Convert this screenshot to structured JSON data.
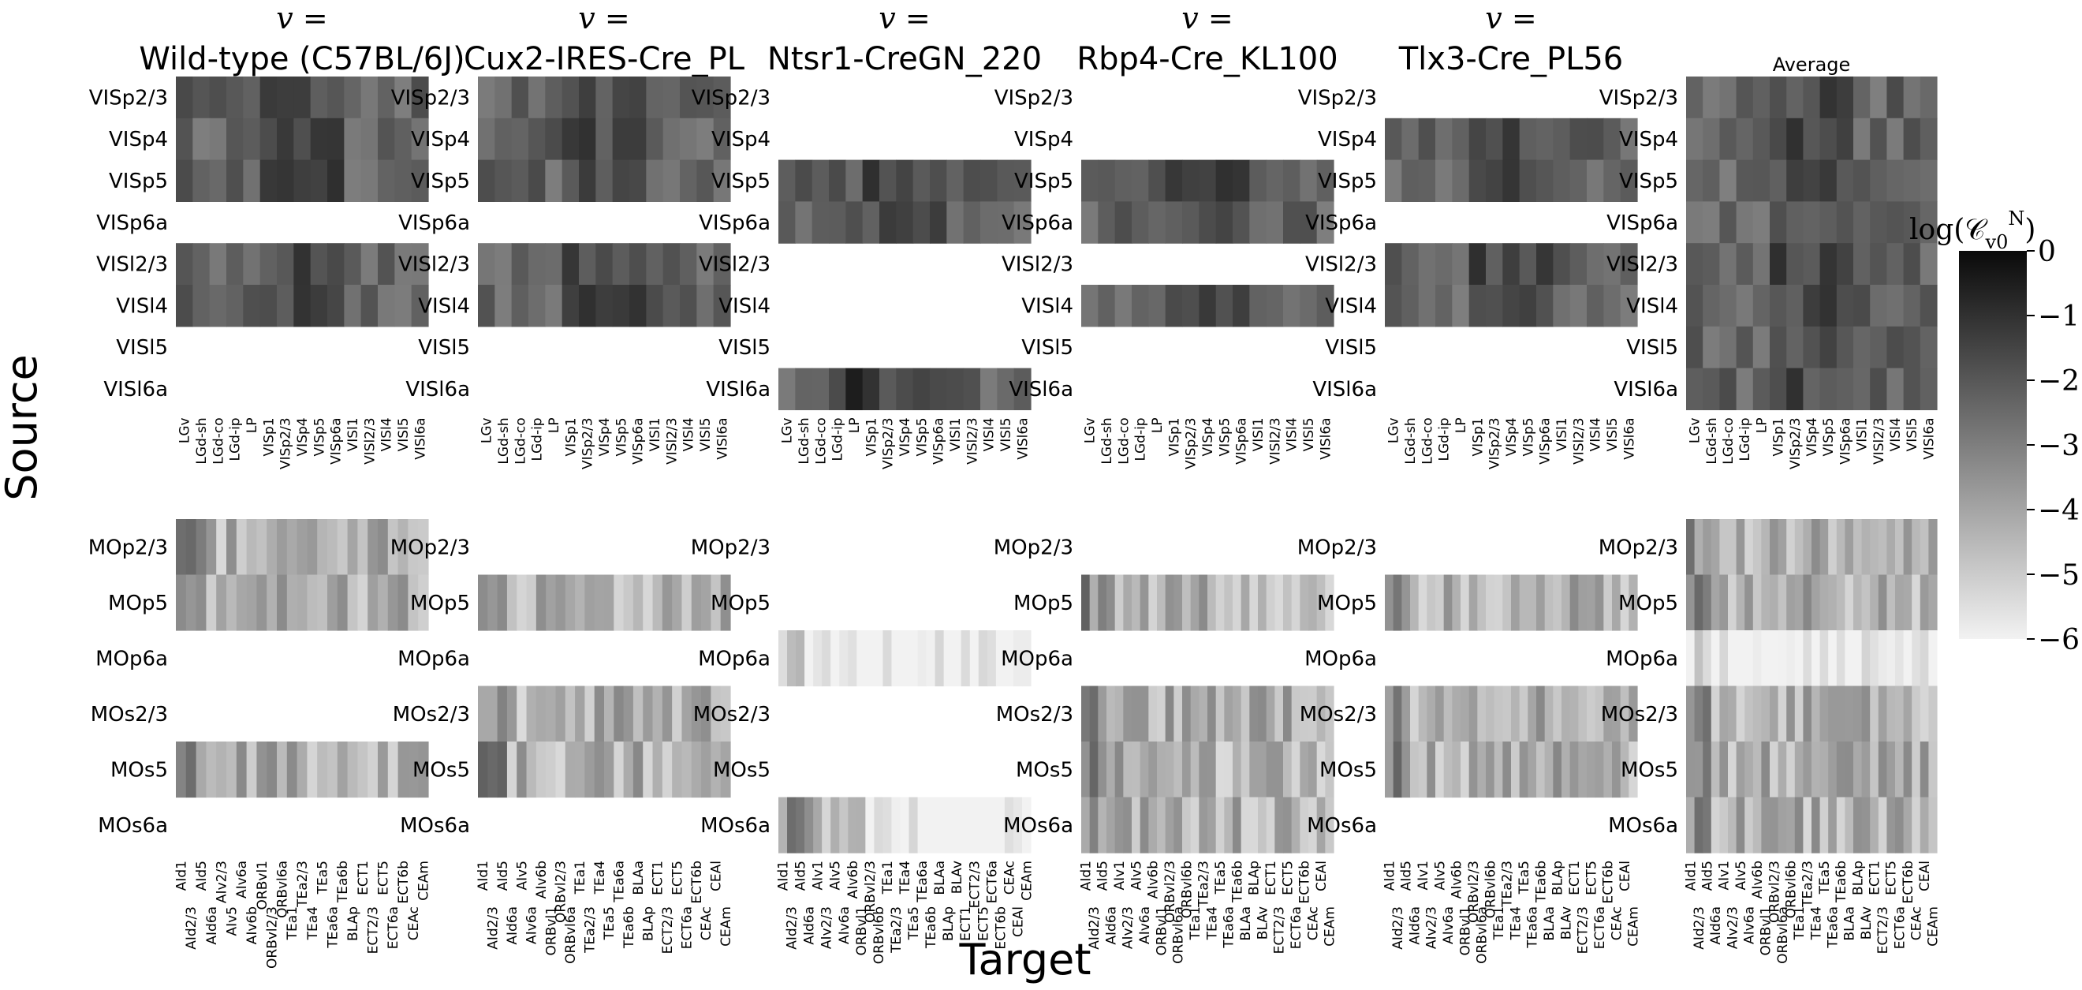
{
  "chart_data": {
    "type": "heatmap",
    "xlabel": "Target",
    "ylabel": "Source",
    "v_symbol": "v =",
    "panels": [
      {
        "title": "Wild-type (C57BL/6J)",
        "show_v": true,
        "vis_rows": [
          0,
          1,
          2,
          4,
          5
        ],
        "mo_rows": [
          0,
          1,
          4
        ],
        "vis_cols": "A",
        "mo_cols": "A"
      },
      {
        "title": "Cux2-IRES-Cre_PL",
        "show_v": true,
        "vis_rows": [
          0,
          1,
          2,
          4,
          5
        ],
        "mo_rows": [
          1,
          3,
          4
        ],
        "vis_cols": "B",
        "mo_cols": "B"
      },
      {
        "title": "Ntsr1-CreGN_220",
        "show_v": true,
        "vis_rows": [
          2,
          3,
          7
        ],
        "mo_rows": [
          2,
          5
        ],
        "vis_cols": "B",
        "mo_cols": "C"
      },
      {
        "title": "Rbp4-Cre_KL100",
        "show_v": true,
        "vis_rows": [
          2,
          3,
          5
        ],
        "mo_rows": [
          1,
          3,
          4,
          5
        ],
        "vis_cols": "B",
        "mo_cols": "D"
      },
      {
        "title": "Tlx3-Cre_PL56",
        "show_v": true,
        "vis_rows": [
          1,
          2,
          4,
          5
        ],
        "mo_rows": [
          1,
          3,
          4
        ],
        "vis_cols": "B",
        "mo_cols": "D"
      },
      {
        "title": "Average",
        "show_v": false,
        "vis_rows": [
          0,
          1,
          2,
          3,
          4,
          5,
          6,
          7
        ],
        "mo_rows": [
          0,
          1,
          2,
          3,
          4,
          5
        ],
        "vis_cols": "B",
        "mo_cols": "D"
      }
    ],
    "vis_sources": [
      "VISp2/3",
      "VISp4",
      "VISp5",
      "VISp6a",
      "VISl2/3",
      "VISl4",
      "VISl5",
      "VISl6a"
    ],
    "mo_sources": [
      "MOp2/3",
      "MOp5",
      "MOp6a",
      "MOs2/3",
      "MOs5",
      "MOs6a"
    ],
    "vis_targets": {
      "A": [
        "LGv",
        "LGd-sh",
        "LGd-co",
        "LGd-ip",
        "LP",
        "VISp1",
        "VISp2/3",
        "VISp4",
        "VISp5",
        "VISp6a",
        "VISl1",
        "VISl2/3",
        "VISl4",
        "VISl5",
        "VISl6a"
      ],
      "B": [
        "LGv",
        "LGd-sh",
        "LGd-co",
        "LGd-ip",
        "LP",
        "VISp1",
        "VISp2/3",
        "VISp4",
        "VISp5",
        "VISp6a",
        "VISl1",
        "VISl2/3",
        "VISl4",
        "VISl5",
        "VISl6a"
      ]
    },
    "mo_targets": {
      "A": [
        "AId1",
        "AId2/3",
        "AId5",
        "AId6a",
        "AIv2/3",
        "AIv5",
        "AIv6a",
        "AIv6b",
        "ORBvl1",
        "ORBvl2/3",
        "ORBvl6a",
        "TEa1",
        "TEa2/3",
        "TEa4",
        "TEa5",
        "TEa6a",
        "TEa6b",
        "BLAp",
        "ECT1",
        "ECT2/3",
        "ECT5",
        "ECT6a",
        "ECT6b",
        "CEAc",
        "CEAm"
      ],
      "B": [
        "AId1",
        "AId2/3",
        "AId5",
        "AId6a",
        "AIv5",
        "AIv6a",
        "AIv6b",
        "ORBvl1",
        "ORBvl2/3",
        "ORBvl6a",
        "TEa1",
        "TEa2/3",
        "TEa4",
        "TEa5",
        "TEa6a",
        "TEa6b",
        "BLAa",
        "BLAp",
        "ECT1",
        "ECT2/3",
        "ECT5",
        "ECT6a",
        "ECT6b",
        "CEAc",
        "CEAl",
        "CEAm"
      ],
      "C": [
        "AId1",
        "AId2/3",
        "AId5",
        "AId6a",
        "AIv1",
        "AIv2/3",
        "AIv5",
        "AIv6a",
        "AIv6b",
        "ORBvl1",
        "ORBvl2/3",
        "ORBvl6b",
        "TEa1",
        "TEa2/3",
        "TEa4",
        "TEa5",
        "TEa6a",
        "TEa6b",
        "BLAa",
        "BLAp",
        "BLAv",
        "ECT1",
        "ECT2/3",
        "ECT5",
        "ECT6a",
        "ECT6b",
        "CEAc",
        "CEAl",
        "CEAm"
      ],
      "D": [
        "AId1",
        "AId2/3",
        "AId5",
        "AId6a",
        "AIv1",
        "AIv2/3",
        "AIv5",
        "AIv6a",
        "AIv6b",
        "ORBvl1",
        "ORBvl2/3",
        "ORBvl6a",
        "ORBvl6b",
        "TEa1",
        "TEa2/3",
        "TEa4",
        "TEa5",
        "TEa6a",
        "TEa6b",
        "BLAa",
        "BLAp",
        "BLAv",
        "ECT1",
        "ECT2/3",
        "ECT5",
        "ECT6a",
        "ECT6b",
        "CEAc",
        "CEAl",
        "CEAm"
      ]
    },
    "colorbar": {
      "title": "log(C_v0^N)",
      "ticks": [
        "0",
        "−1",
        "−2",
        "−3",
        "−4",
        "−5",
        "−6"
      ],
      "range": [
        -6,
        0
      ],
      "colors": [
        "#f2f2f2",
        "#0a0a0a"
      ]
    }
  }
}
